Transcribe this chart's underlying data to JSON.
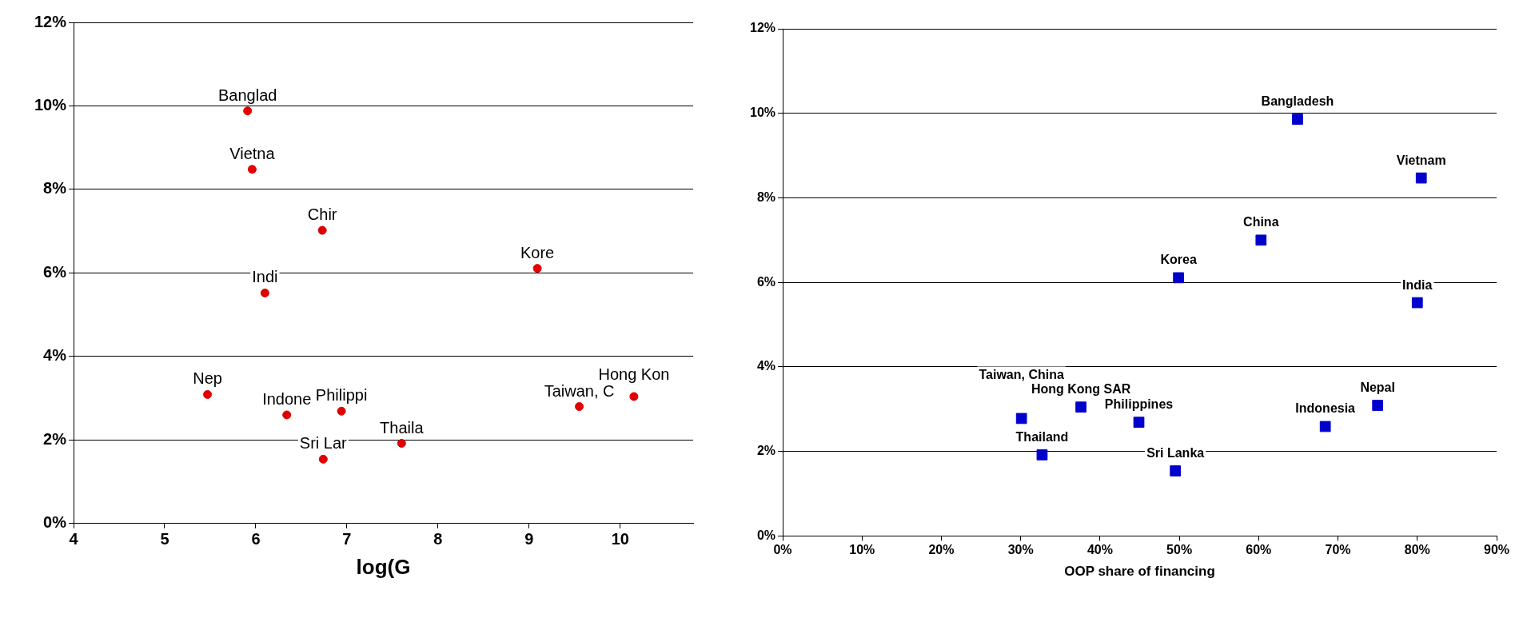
{
  "chart_data": [
    {
      "type": "scatter",
      "xlabel": "log(G",
      "color": "#e00000",
      "marker": "circle",
      "grid": "y",
      "x": [
        5.91,
        5.96,
        6.73,
        6.1,
        9.09,
        5.47,
        6.34,
        6.94,
        6.74,
        7.6,
        9.55,
        10.15
      ],
      "values": [
        9.88,
        8.48,
        7.02,
        5.52,
        6.11,
        3.09,
        2.6,
        2.69,
        1.54,
        1.92,
        2.8,
        3.04
      ],
      "xlim": [
        4,
        10.8
      ],
      "xticks": [
        4,
        5,
        6,
        7,
        8,
        9,
        10
      ],
      "ylim": [
        0,
        12
      ],
      "yticks": [
        {
          "value": 0,
          "label": "0%"
        },
        {
          "value": 2,
          "label": "2%"
        },
        {
          "value": 4,
          "label": "4%"
        },
        {
          "value": 6,
          "label": "6%"
        },
        {
          "value": 8,
          "label": "8%"
        },
        {
          "value": 10,
          "label": "10%"
        },
        {
          "value": 12,
          "label": "12%"
        }
      ],
      "annotations": [
        {
          "text": "Banglad",
          "x": 5.91,
          "y": 9.88
        },
        {
          "text": "Vietna",
          "x": 5.96,
          "y": 8.48
        },
        {
          "text": "Chir",
          "x": 6.73,
          "y": 7.02
        },
        {
          "text": "Indi",
          "x": 6.1,
          "y": 5.52
        },
        {
          "text": "Kore",
          "x": 9.09,
          "y": 6.11
        },
        {
          "text": "Nep",
          "x": 5.47,
          "y": 3.09
        },
        {
          "text": "Indone",
          "x": 6.34,
          "y": 2.6
        },
        {
          "text": "Philippi",
          "x": 6.94,
          "y": 2.69
        },
        {
          "text": "Sri Lar",
          "x": 6.74,
          "y": 1.54
        },
        {
          "text": "Thaila",
          "x": 7.6,
          "y": 1.92
        },
        {
          "text": "Taiwan, C",
          "x": 9.55,
          "y": 2.8
        },
        {
          "text": "Hong Kon",
          "x": 10.15,
          "y": 3.04
        }
      ]
    },
    {
      "type": "scatter",
      "xlabel": "OOP share of financing",
      "color": "#0000cc",
      "marker": "square",
      "grid": "y",
      "x": [
        64.9,
        80.5,
        60.3,
        49.9,
        80.0,
        37.6,
        30.1,
        44.9,
        75.0,
        68.4,
        32.7,
        49.5
      ],
      "values": [
        9.86,
        8.47,
        7.0,
        6.11,
        5.52,
        3.05,
        2.78,
        2.69,
        3.09,
        2.59,
        1.92,
        1.54
      ],
      "xlim": [
        0,
        90
      ],
      "xticks": [
        {
          "value": 0,
          "label": "0%"
        },
        {
          "value": 10,
          "label": "10%"
        },
        {
          "value": 20,
          "label": "20%"
        },
        {
          "value": 30,
          "label": "30%"
        },
        {
          "value": 40,
          "label": "40%"
        },
        {
          "value": 50,
          "label": "50%"
        },
        {
          "value": 60,
          "label": "60%"
        },
        {
          "value": 70,
          "label": "70%"
        },
        {
          "value": 80,
          "label": "80%"
        },
        {
          "value": 90,
          "label": "90%"
        }
      ],
      "ylim": [
        0,
        12
      ],
      "yticks": [
        {
          "value": 0,
          "label": "0%"
        },
        {
          "value": 2,
          "label": "2%"
        },
        {
          "value": 4,
          "label": "4%"
        },
        {
          "value": 6,
          "label": "6%"
        },
        {
          "value": 8,
          "label": "8%"
        },
        {
          "value": 10,
          "label": "10%"
        },
        {
          "value": 12,
          "label": "12%"
        }
      ],
      "annotations": [
        {
          "text": "Bangladesh",
          "x": 64.9,
          "y": 9.86
        },
        {
          "text": "Vietnam",
          "x": 80.5,
          "y": 8.47
        },
        {
          "text": "China",
          "x": 60.3,
          "y": 7.0
        },
        {
          "text": "Korea",
          "x": 49.9,
          "y": 6.11
        },
        {
          "text": "India",
          "x": 80.0,
          "y": 5.52
        },
        {
          "text": "Hong Kong SAR",
          "x": 37.6,
          "y": 3.05
        },
        {
          "text": "Taiwan, China",
          "x": 30.1,
          "y": 2.78
        },
        {
          "text": "Philippines",
          "x": 44.9,
          "y": 2.69
        },
        {
          "text": "Nepal",
          "x": 75.0,
          "y": 3.09
        },
        {
          "text": "Indonesia",
          "x": 68.4,
          "y": 2.59
        },
        {
          "text": "Thailand",
          "x": 32.7,
          "y": 1.92
        },
        {
          "text": "Sri Lanka",
          "x": 49.5,
          "y": 1.54
        }
      ]
    }
  ]
}
